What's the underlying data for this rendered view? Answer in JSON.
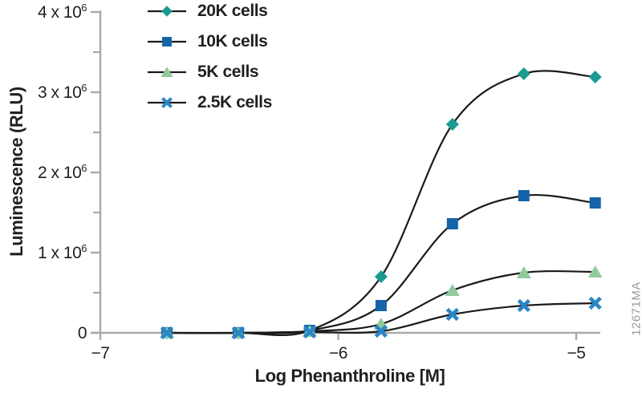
{
  "figure": {
    "watermark": "12671MA"
  },
  "chart_data": {
    "type": "line",
    "title": "",
    "xlabel": "Log Phenanthroline [M]",
    "ylabel": "Luminescence (RLU)",
    "xlim": [
      -7,
      -5
    ],
    "ylim": [
      0,
      4000000
    ],
    "grid": false,
    "legend_position": "top-left-inside",
    "axis_color": "#a7a9ac",
    "text_color": "#231f20",
    "line_color": "#1a1a1a",
    "x_ticks": [
      {
        "value": -7,
        "label": "−7"
      },
      {
        "value": -6,
        "label": "−6"
      },
      {
        "value": -5,
        "label": "−5"
      }
    ],
    "y_ticks": [
      {
        "value": 0,
        "base": "0",
        "exp": ""
      },
      {
        "value": 1000000,
        "base": "1 x 10",
        "exp": "6"
      },
      {
        "value": 2000000,
        "base": "2 x 10",
        "exp": "6"
      },
      {
        "value": 3000000,
        "base": "3 x 10",
        "exp": "6"
      },
      {
        "value": 4000000,
        "base": "4 x 10",
        "exp": "6"
      }
    ],
    "y_minor_ticks": [
      500000,
      1500000,
      2500000,
      3500000
    ],
    "x": [
      -6.72,
      -6.42,
      -6.12,
      -5.82,
      -5.52,
      -5.22,
      -4.92
    ],
    "series": [
      {
        "name": "20K cells",
        "marker": "diamond",
        "color": "#1b9a92",
        "values": [
          0,
          0,
          30000,
          700000,
          2600000,
          3230000,
          3190000
        ]
      },
      {
        "name": "10K cells",
        "marker": "square",
        "color": "#1563a8",
        "values": [
          0,
          0,
          30000,
          340000,
          1360000,
          1710000,
          1620000
        ]
      },
      {
        "name": "5K cells",
        "marker": "triangle",
        "color": "#90cb9e",
        "values": [
          0,
          0,
          20000,
          110000,
          530000,
          750000,
          760000
        ]
      },
      {
        "name": "2.5K cells",
        "marker": "x",
        "color": "#2b86c6",
        "values": [
          0,
          0,
          10000,
          20000,
          230000,
          340000,
          370000
        ]
      }
    ]
  }
}
